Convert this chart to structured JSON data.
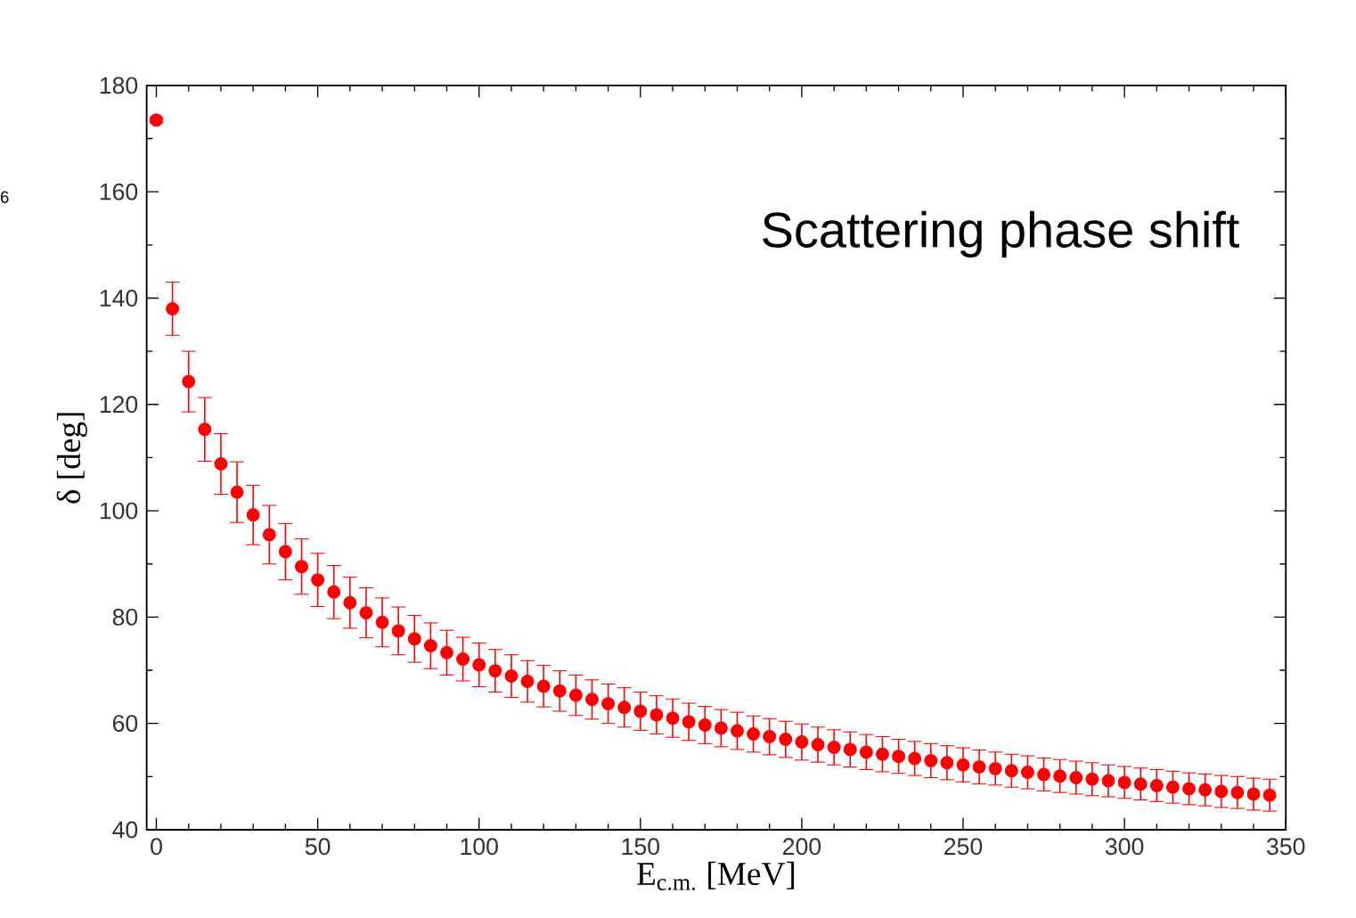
{
  "chart_data": {
    "type": "scatter",
    "xlabel": "E$_{c.m.}$ [MeV]",
    "ylabel": "δ [deg]",
    "annotations": [
      "Scattering phase shift",
      "6"
    ],
    "xlim": [
      -3,
      350
    ],
    "ylim": [
      40,
      180
    ],
    "xticks": [
      0,
      50,
      100,
      150,
      200,
      250,
      300,
      350
    ],
    "yticks": [
      40,
      60,
      80,
      100,
      120,
      140,
      160,
      180
    ],
    "marker": "circle",
    "color": "#ff0000",
    "x": [
      0,
      5,
      10,
      15,
      20,
      25,
      30,
      35,
      40,
      45,
      50,
      55,
      60,
      65,
      70,
      75,
      80,
      85,
      90,
      95,
      100,
      105,
      110,
      115,
      120,
      125,
      130,
      135,
      140,
      145,
      150,
      155,
      160,
      165,
      170,
      175,
      180,
      185,
      190,
      195,
      200,
      205,
      210,
      215,
      220,
      225,
      230,
      235,
      240,
      245,
      250,
      255,
      260,
      265,
      270,
      275,
      280,
      285,
      290,
      295,
      300,
      305,
      310,
      315,
      320,
      325,
      330,
      335,
      340,
      345
    ],
    "values": [
      173.5,
      138,
      124.3,
      115.3,
      108.8,
      103.5,
      99.2,
      95.5,
      92.3,
      89.5,
      87,
      84.7,
      82.7,
      80.8,
      79,
      77.4,
      75.9,
      74.6,
      73.3,
      72.1,
      71,
      69.9,
      68.9,
      67.9,
      67,
      66.1,
      65.3,
      64.5,
      63.7,
      63,
      62.3,
      61.6,
      61,
      60.3,
      59.7,
      59.1,
      58.6,
      58,
      57.5,
      57,
      56.5,
      56,
      55.5,
      55.1,
      54.6,
      54.2,
      53.8,
      53.4,
      53,
      52.6,
      52.2,
      51.8,
      51.5,
      51.1,
      50.8,
      50.4,
      50.1,
      49.8,
      49.5,
      49.2,
      48.9,
      48.6,
      48.3,
      48,
      47.7,
      47.5,
      47.2,
      47,
      46.7,
      46.5
    ],
    "errors": [
      0.5,
      5,
      5.7,
      6,
      5.7,
      5.7,
      5.6,
      5.5,
      5.3,
      5.2,
      5,
      5,
      4.8,
      4.7,
      4.6,
      4.5,
      4.4,
      4.3,
      4.2,
      4.1,
      4.1,
      4,
      4,
      3.9,
      3.9,
      3.8,
      3.8,
      3.7,
      3.7,
      3.7,
      3.6,
      3.6,
      3.6,
      3.5,
      3.5,
      3.5,
      3.5,
      3.4,
      3.4,
      3.4,
      3.4,
      3.3,
      3.3,
      3.3,
      3.3,
      3.3,
      3.2,
      3.2,
      3.2,
      3.2,
      3.2,
      3.2,
      3.1,
      3.1,
      3.1,
      3.1,
      3.1,
      3.1,
      3.1,
      3.0,
      3.0,
      3.0,
      3.0,
      3.0,
      3.0,
      3.0,
      3.0,
      3.0,
      3.0,
      3.0
    ]
  }
}
